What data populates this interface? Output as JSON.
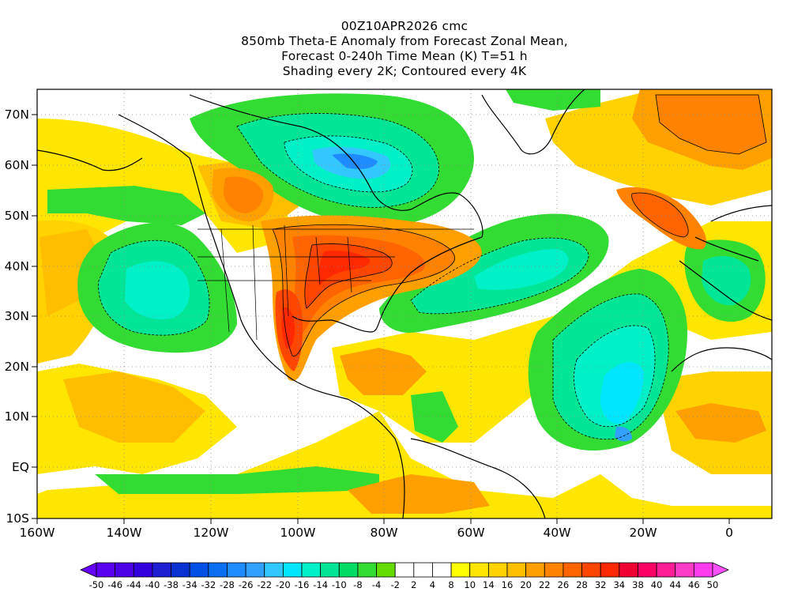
{
  "title_lines": [
    "00Z10APR2026 cmc",
    "850mb Theta-E Anomaly from Forecast Zonal Mean,",
    "Forecast 0-240h Time Mean (K) T=51 h",
    "Shading every 2K; Contoured every 4K"
  ],
  "axes": {
    "lon_labels": [
      "160W",
      "140W",
      "120W",
      "100W",
      "80W",
      "60W",
      "40W",
      "20W",
      "0"
    ],
    "lat_labels": [
      "70N",
      "60N",
      "50N",
      "40N",
      "30N",
      "20N",
      "10N",
      "EQ",
      "10S"
    ],
    "lon_range": [
      -160,
      10
    ],
    "lat_range": [
      -10,
      75
    ]
  },
  "colorbar": {
    "labels": [
      "-50",
      "-46",
      "-44",
      "-40",
      "-38",
      "-34",
      "-32",
      "-28",
      "-26",
      "-22",
      "-20",
      "-16",
      "-14",
      "-10",
      "-8",
      "-4",
      "-2",
      "2",
      "4",
      "8",
      "10",
      "14",
      "16",
      "20",
      "22",
      "26",
      "28",
      "32",
      "34",
      "38",
      "40",
      "44",
      "46",
      "50"
    ],
    "colors": [
      "#6600ff",
      "#5a00f0",
      "#4b00e6",
      "#3200dc",
      "#1e1ed2",
      "#0a32d2",
      "#0050e6",
      "#0a6ef0",
      "#1e8cff",
      "#32a0ff",
      "#32c8ff",
      "#00e6ff",
      "#00f0c8",
      "#00e696",
      "#00dc64",
      "#32dc32",
      "#64dc00",
      "#ffffff",
      "#ffffff",
      "#ffffff",
      "#ffff00",
      "#ffe600",
      "#ffd200",
      "#ffbe00",
      "#ffa000",
      "#ff8200",
      "#ff6400",
      "#ff4600",
      "#ff2800",
      "#f00032",
      "#ff0064",
      "#ff1e96",
      "#ff3cc8",
      "#ff3cf0",
      "#ff50ff"
    ]
  },
  "map_regions": [
    {
      "name": "hudson-bay-cold-anomaly",
      "color": "#32c8ff",
      "level": -20
    },
    {
      "name": "eastern-us-warm-anomaly",
      "color": "#ff2800",
      "level": 30
    },
    {
      "name": "gulf-coast-warm-anomaly",
      "color": "#ff4600",
      "level": 28
    },
    {
      "name": "eastern-pacific-cold-anomaly",
      "color": "#00e696",
      "level": -14
    },
    {
      "name": "tropical-atlantic-cold-anomaly",
      "color": "#00f0c8",
      "level": -18
    },
    {
      "name": "western-atlantic-cold-anomaly",
      "color": "#00e6ff",
      "level": -18
    },
    {
      "name": "northern-europe-warm-anomaly",
      "color": "#ff8200",
      "level": 22
    },
    {
      "name": "north-atlantic-warm-streak",
      "color": "#ff6400",
      "level": 24
    }
  ]
}
